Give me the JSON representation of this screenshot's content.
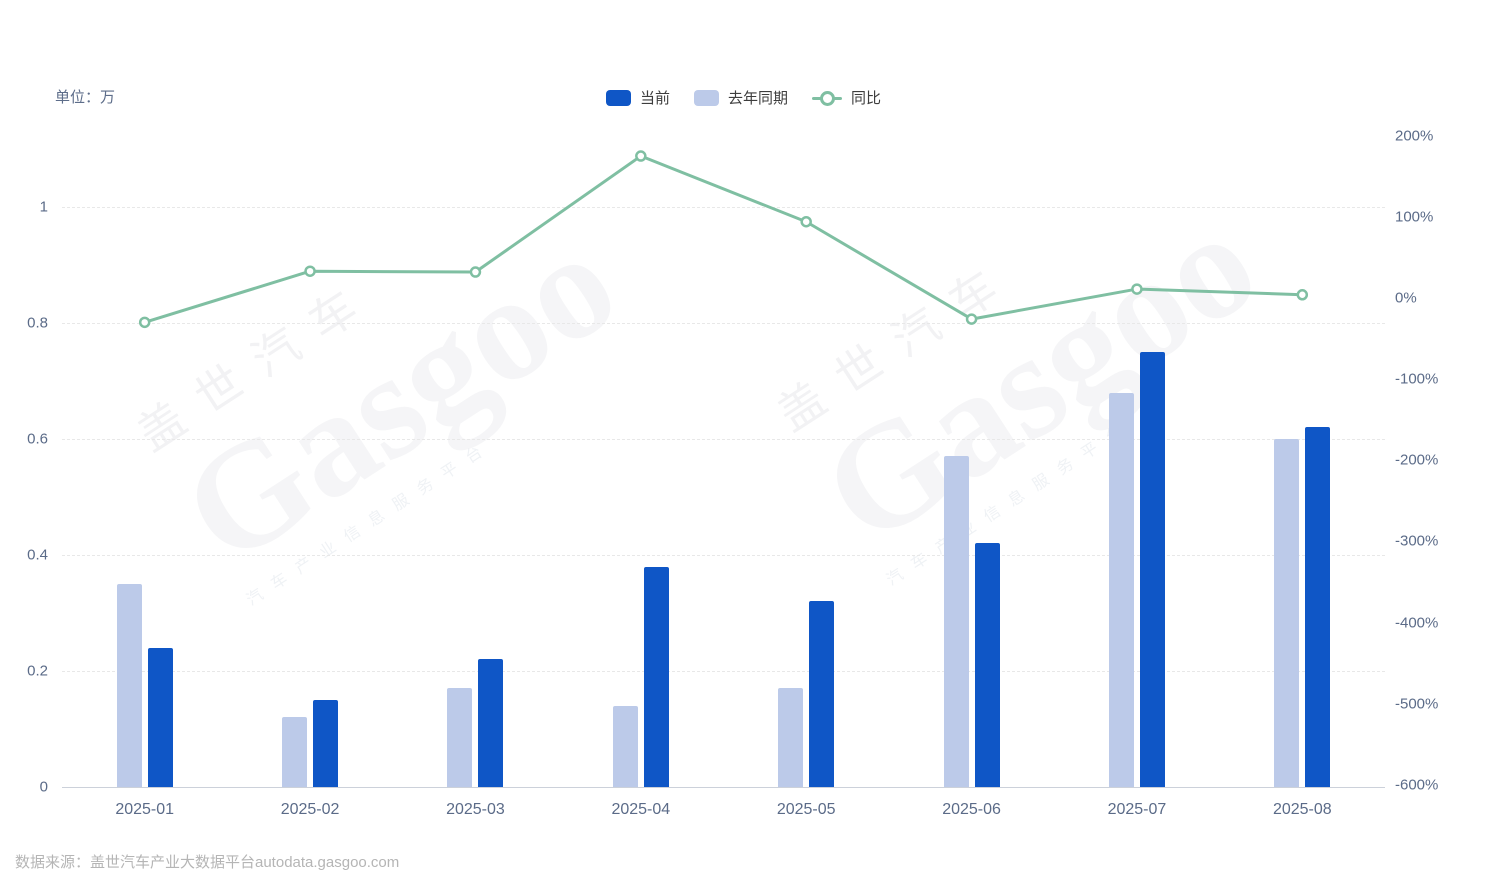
{
  "unit_label": "单位：万",
  "legend": {
    "items": [
      {
        "label": "当前",
        "type": "bar",
        "color": "#0f56c6"
      },
      {
        "label": "去年同期",
        "type": "bar",
        "color": "#bccae9"
      },
      {
        "label": "同比",
        "type": "line",
        "color": "#7fbfa2"
      }
    ]
  },
  "watermark": {
    "brand_cn": "盖世汽车",
    "brand_en": "Gasgoo",
    "tagline": "汽车产业信息服务平台"
  },
  "footer": {
    "source_text": "数据来源：盖世汽车产业大数据平台autodata.gasgoo.com"
  },
  "chart_data": {
    "type": "bar",
    "subtype": "grouped-bars-with-yoy-line",
    "title": "",
    "categories": [
      "2025-01",
      "2025-02",
      "2025-03",
      "2025-04",
      "2025-05",
      "2025-06",
      "2025-07",
      "2025-08"
    ],
    "series": [
      {
        "name": "当前",
        "type": "bar",
        "axis": "left",
        "slot": 1,
        "color": "#0f56c6",
        "values": [
          0.24,
          0.15,
          0.22,
          0.38,
          0.32,
          0.42,
          0.75,
          0.62
        ]
      },
      {
        "name": "去年同期",
        "type": "bar",
        "axis": "left",
        "slot": 0,
        "color": "#bccae9",
        "values": [
          0.35,
          0.12,
          0.17,
          0.14,
          0.17,
          0.57,
          0.68,
          0.6
        ]
      },
      {
        "name": "同比",
        "type": "line",
        "axis": "right",
        "unit": "%",
        "color": "#7fbfa2",
        "values": [
          -30,
          33,
          32,
          175,
          94,
          -26,
          11,
          4
        ]
      }
    ],
    "left_axis": {
      "label": "单位：万",
      "ticks": [
        0,
        0.2,
        0.4,
        0.6,
        0.8,
        1
      ],
      "range": [
        0,
        1.12
      ]
    },
    "right_axis": {
      "ticks": [
        "200%",
        "100%",
        "0%",
        "-100%",
        "-200%",
        "-300%",
        "-400%",
        "-500%",
        "-600%"
      ],
      "range": [
        -600,
        200
      ]
    },
    "grid": true,
    "legend_position": "top-center"
  }
}
